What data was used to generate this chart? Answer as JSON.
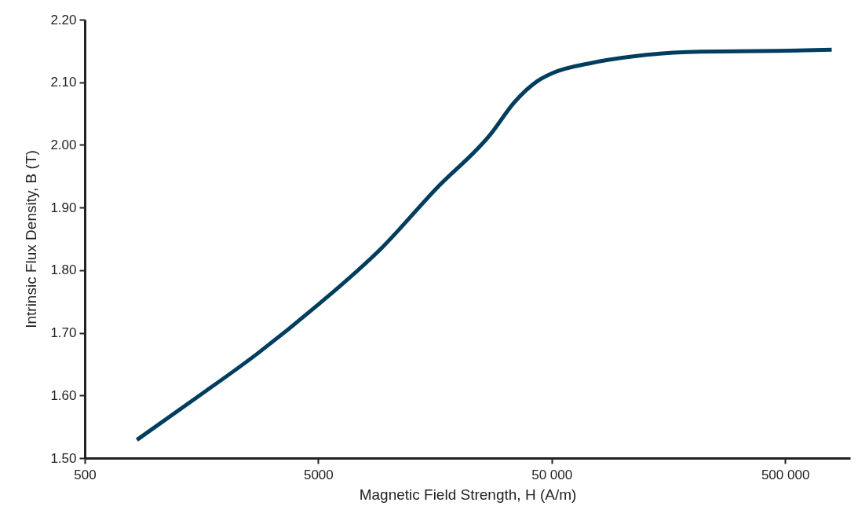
{
  "chart_data": {
    "type": "line",
    "xlabel": "Magnetic Field Strength, H (A/m)",
    "ylabel": "Intrinsic Flux Density, B (T)",
    "log": "x",
    "grid": false,
    "marker": "none",
    "line_style": "solid",
    "xlim": [
      500,
      950000
    ],
    "ylim": [
      1.5,
      2.2
    ],
    "xticks": [
      500,
      5000,
      {
        "value": 50000,
        "label": "50 000"
      },
      {
        "value": 500000,
        "label": "500 000"
      }
    ],
    "yticks": [
      {
        "value": 1.5,
        "label": "1.50"
      },
      {
        "value": 1.6,
        "label": "1.60"
      },
      {
        "value": 1.7,
        "label": "1.70"
      },
      {
        "value": 1.8,
        "label": "1.80"
      },
      {
        "value": 1.9,
        "label": "1.90"
      },
      {
        "value": 2.0,
        "label": "2.00"
      },
      {
        "value": 2.1,
        "label": "2.10"
      },
      {
        "value": 2.2,
        "label": "2.20"
      }
    ],
    "series": [
      {
        "color": "#003d5e",
        "x": [
          836,
          1486,
          2750,
          5000,
          9380,
          16000,
          27500,
          34600,
          43500,
          50000,
          74500,
          127800,
          218000,
          470000,
          792000
        ],
        "values": [
          1.529,
          1.595,
          1.667,
          1.745,
          1.836,
          1.93,
          2.018,
          2.068,
          2.102,
          2.114,
          2.131,
          2.144,
          2.149,
          2.15,
          2.152
        ]
      }
    ]
  }
}
